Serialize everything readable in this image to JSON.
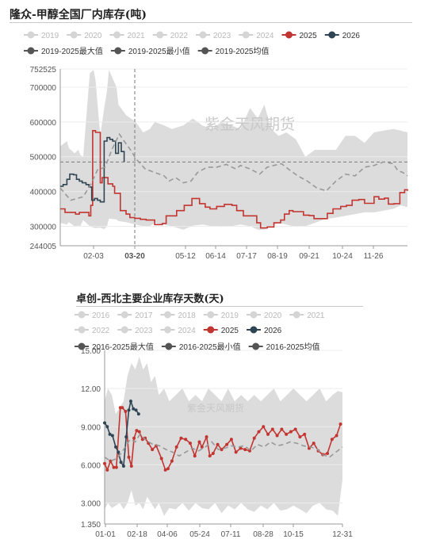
{
  "chart_data": [
    {
      "type": "line",
      "title": "隆众-甲醇全国厂内库存(吨)",
      "watermark": "紫金天风期货",
      "legend": [
        {
          "name": "2019",
          "color": "#cfcfcf",
          "active": false
        },
        {
          "name": "2020",
          "color": "#cfcfcf",
          "active": false
        },
        {
          "name": "2021",
          "color": "#cfcfcf",
          "active": false
        },
        {
          "name": "2022",
          "color": "#cfcfcf",
          "active": false
        },
        {
          "name": "2023",
          "color": "#cfcfcf",
          "active": false
        },
        {
          "name": "2024",
          "color": "#cfcfcf",
          "active": false
        },
        {
          "name": "2025",
          "color": "#c23531",
          "active": true
        },
        {
          "name": "2026",
          "color": "#2f4554",
          "active": true
        },
        {
          "name": "2019-2025最大值",
          "color": "#555555",
          "active": true
        },
        {
          "name": "2019-2025最小值",
          "color": "#555555",
          "active": true
        },
        {
          "name": "2019-2025均值",
          "color": "#555555",
          "active": true
        }
      ],
      "yticks": [
        "752525",
        "700000",
        "600000",
        "500000",
        "400000",
        "300000",
        "244005"
      ],
      "ylim": [
        244005,
        752525
      ],
      "y_highlight": "484900",
      "xticks": [
        "02-03",
        "03-20",
        "05-12",
        "06-14",
        "07-17",
        "08-19",
        "09-21",
        "10-24",
        "11-26"
      ],
      "x_highlight": "03-20",
      "range_band": {
        "days": [
          1,
          8,
          10,
          16,
          20,
          22,
          25,
          32,
          36,
          38,
          43,
          47,
          50,
          52,
          60,
          62,
          70,
          80,
          88,
          95,
          100,
          110,
          118,
          130,
          140,
          150,
          160,
          170,
          180,
          190,
          200,
          208,
          215,
          222,
          230,
          238,
          248,
          258,
          268,
          278,
          290,
          300,
          310,
          320,
          330,
          340,
          350,
          358,
          365
        ],
        "max": [
          530000,
          545000,
          525000,
          510000,
          520000,
          505000,
          500000,
          740000,
          750000,
          720000,
          560000,
          640000,
          690000,
          750000,
          700000,
          650000,
          620000,
          600000,
          570000,
          580000,
          600000,
          590000,
          580000,
          590000,
          610000,
          590000,
          580000,
          600000,
          590000,
          580000,
          640000,
          610000,
          650000,
          580000,
          560000,
          570000,
          550000,
          500000,
          520000,
          520000,
          520000,
          560000,
          560000,
          540000,
          570000,
          575000,
          580000,
          575000,
          570000
        ],
        "min": [
          310000,
          305000,
          312000,
          300000,
          302000,
          300000,
          318000,
          300000,
          296000,
          295000,
          296000,
          292000,
          300000,
          322000,
          320000,
          315000,
          312000,
          305000,
          300000,
          300000,
          310000,
          305000,
          300000,
          290000,
          302000,
          305000,
          300000,
          298000,
          300000,
          305000,
          300000,
          290000,
          290000,
          300000,
          310000,
          305000,
          298000,
          300000,
          310000,
          320000,
          325000,
          330000,
          335000,
          340000,
          340000,
          345000,
          350000,
          360000,
          355000
        ]
      },
      "series": [
        {
          "name": "2025",
          "color": "#c23531",
          "x": [
            1,
            6,
            10,
            17,
            21,
            27,
            31,
            33,
            35,
            38,
            43,
            45,
            51,
            56,
            58,
            64,
            70,
            74,
            79,
            85,
            91,
            96,
            100,
            108,
            112,
            123,
            131,
            139,
            147,
            153,
            158,
            165,
            173,
            181,
            186,
            193,
            197,
            207,
            211,
            218,
            225,
            232,
            236,
            241,
            245,
            256,
            262,
            267,
            275,
            281,
            287,
            295,
            301,
            307,
            314,
            320,
            330,
            335,
            341,
            345,
            351,
            357,
            362,
            365
          ],
          "y": [
            350000,
            340000,
            340000,
            335000,
            340000,
            340000,
            330000,
            360000,
            575000,
            570000,
            425000,
            440000,
            422000,
            415000,
            395000,
            345000,
            335000,
            325000,
            323000,
            320000,
            318000,
            318000,
            305000,
            308000,
            330000,
            345000,
            360000,
            380000,
            365000,
            355000,
            350000,
            357000,
            363000,
            360000,
            345000,
            330000,
            330000,
            310000,
            295000,
            298000,
            310000,
            318000,
            335000,
            345000,
            342000,
            332000,
            331000,
            322000,
            322000,
            337000,
            350000,
            357000,
            360000,
            375000,
            377000,
            366000,
            385000,
            378000,
            381000,
            364000,
            365000,
            397000,
            405000,
            402000
          ]
        },
        {
          "name": "2026",
          "color": "#2f4554",
          "x": [
            1,
            4,
            8,
            11,
            15,
            18,
            21,
            24,
            28,
            31,
            34,
            37,
            40,
            43,
            47,
            50,
            53,
            56,
            59,
            62,
            65,
            68
          ],
          "y": [
            415000,
            420000,
            435000,
            450000,
            448000,
            435000,
            430000,
            425000,
            420000,
            413000,
            375000,
            380000,
            375000,
            370000,
            545000,
            555000,
            550000,
            545000,
            510000,
            540000,
            515000,
            485000
          ]
        },
        {
          "name": "2019-2025均值",
          "color": "#999999",
          "dash": true,
          "x": [
            1,
            12,
            25,
            34,
            40,
            48,
            55,
            63,
            68,
            72,
            76,
            80,
            90,
            100,
            110,
            115,
            122,
            130,
            138,
            145,
            155,
            165,
            175,
            185,
            190,
            200,
            210,
            218,
            225,
            233,
            240,
            250,
            260,
            270,
            280,
            290,
            300,
            310,
            320,
            330,
            340,
            350,
            355,
            360,
            365
          ],
          "y": [
            410000,
            375000,
            385000,
            425000,
            462000,
            470000,
            520000,
            565000,
            545000,
            530000,
            515000,
            495000,
            465000,
            455000,
            445000,
            430000,
            440000,
            425000,
            430000,
            455000,
            470000,
            470000,
            478000,
            465000,
            475000,
            465000,
            450000,
            470000,
            475000,
            480000,
            465000,
            445000,
            430000,
            410000,
            402000,
            430000,
            450000,
            445000,
            470000,
            475000,
            485000,
            480000,
            460000,
            455000,
            445000
          ]
        }
      ]
    },
    {
      "type": "line",
      "title": "卓创-西北主要企业库存天数(天)",
      "watermark": "紫金天风期货",
      "legend": [
        {
          "name": "2016",
          "color": "#cfcfcf",
          "active": false
        },
        {
          "name": "2017",
          "color": "#cfcfcf",
          "active": false
        },
        {
          "name": "2018",
          "color": "#cfcfcf",
          "active": false
        },
        {
          "name": "2019",
          "color": "#cfcfcf",
          "active": false
        },
        {
          "name": "2020",
          "color": "#cfcfcf",
          "active": false
        },
        {
          "name": "2021",
          "color": "#cfcfcf",
          "active": false
        },
        {
          "name": "2022",
          "color": "#cfcfcf",
          "active": false
        },
        {
          "name": "2023",
          "color": "#cfcfcf",
          "active": false
        },
        {
          "name": "2024",
          "color": "#cfcfcf",
          "active": false
        },
        {
          "name": "2025",
          "color": "#c23531",
          "active": true
        },
        {
          "name": "2026",
          "color": "#2f4554",
          "active": true
        },
        {
          "name": "2016-2025最大值",
          "color": "#555555",
          "active": true
        },
        {
          "name": "2016-2025最小值",
          "color": "#555555",
          "active": true
        },
        {
          "name": "2016-2025均值",
          "color": "#555555",
          "active": true
        }
      ],
      "yticks": [
        "15.00",
        "12.00",
        "9.000",
        "6.000",
        "3.000",
        "1.350"
      ],
      "ylim": [
        1.35,
        15
      ],
      "xticks": [
        "01-01",
        "02-18",
        "04-06",
        "05-24",
        "07-11",
        "08-28",
        "10-15",
        "12-31"
      ],
      "range_band": {
        "days": [
          1,
          6,
          12,
          18,
          24,
          30,
          36,
          42,
          48,
          54,
          60,
          66,
          72,
          78,
          84,
          92,
          100,
          110,
          120,
          130,
          140,
          150,
          160,
          170,
          180,
          190,
          200,
          210,
          220,
          230,
          240,
          250,
          260,
          270,
          280,
          290,
          300,
          310,
          320,
          330,
          340,
          350,
          358,
          365
        ],
        "max": [
          11.0,
          12.0,
          11.5,
          10.0,
          10.5,
          11.0,
          13.0,
          14.0,
          13.5,
          14.5,
          13.5,
          14.0,
          12.5,
          13.0,
          11.5,
          12.0,
          11.0,
          11.5,
          12.0,
          11.0,
          11.5,
          11.0,
          12.0,
          11.5,
          11.0,
          12.0,
          11.0,
          11.5,
          11.0,
          11.5,
          11.0,
          11.5,
          12.0,
          11.0,
          11.5,
          12.0,
          11.5,
          11.0,
          11.5,
          12.0,
          11.0,
          11.5,
          11.8,
          11.7
        ],
        "min": [
          2.5,
          3.0,
          2.6,
          2.8,
          3.0,
          2.5,
          3.0,
          4.0,
          2.8,
          3.0,
          2.5,
          3.5,
          3.0,
          2.5,
          3.0,
          2.0,
          2.6,
          2.5,
          3.0,
          2.4,
          3.0,
          2.6,
          2.5,
          3.0,
          2.2,
          2.8,
          2.5,
          3.0,
          2.5,
          2.3,
          2.8,
          2.5,
          3.0,
          2.4,
          2.5,
          2.8,
          2.5,
          2.2,
          2.8,
          3.0,
          2.5,
          2.4,
          2.0,
          4.8
        ]
      },
      "series": [
        {
          "name": "2025",
          "color": "#c23531",
          "x": [
            1,
            5,
            10,
            15,
            19,
            25,
            28,
            33,
            38,
            42,
            46,
            50,
            54,
            59,
            63,
            68,
            74,
            80,
            88,
            94,
            98,
            104,
            111,
            118,
            125,
            132,
            139,
            146,
            150,
            157,
            162,
            167,
            174,
            180,
            188,
            195,
            202,
            209,
            216,
            223,
            230,
            237,
            244,
            251,
            258,
            265,
            272,
            279,
            286,
            293,
            300,
            307,
            314,
            321,
            328,
            335,
            342,
            349,
            356,
            362
          ],
          "y": [
            6.1,
            5.6,
            6.3,
            5.8,
            5.8,
            10.5,
            10.5,
            10.2,
            6.6,
            5.9,
            8.1,
            8.7,
            8.6,
            8.0,
            8.1,
            7.7,
            7.2,
            7.5,
            6.5,
            5.6,
            5.7,
            6.3,
            7.4,
            8.1,
            8.0,
            7.7,
            6.7,
            7.8,
            7.4,
            8.2,
            6.7,
            6.9,
            7.6,
            7.2,
            7.6,
            8.0,
            7.0,
            7.3,
            7.2,
            7.1,
            8.1,
            8.6,
            9.0,
            8.4,
            8.8,
            8.3,
            8.8,
            8.4,
            8.6,
            8.8,
            8.2,
            8.4,
            7.3,
            7.7,
            7.1,
            6.8,
            6.9,
            8.0,
            8.3,
            9.2
          ]
        },
        {
          "name": "2026",
          "color": "#2f4554",
          "x": [
            1,
            5,
            9,
            13,
            18,
            22,
            26,
            30,
            34,
            38,
            41,
            45,
            49,
            53
          ],
          "y": [
            9.3,
            9.0,
            8.4,
            8.3,
            7.4,
            7.0,
            6.2,
            5.9,
            8.2,
            10.3,
            11.0,
            10.4,
            10.3,
            10.0
          ]
        },
        {
          "name": "2016-2025均值",
          "color": "#999999",
          "dash": true,
          "x": [
            1,
            10,
            20,
            30,
            40,
            48,
            55,
            65,
            75,
            85,
            95,
            105,
            115,
            125,
            135,
            145,
            155,
            165,
            175,
            185,
            195,
            205,
            215,
            225,
            235,
            245,
            255,
            265,
            275,
            285,
            295,
            305,
            315,
            325,
            335,
            345,
            355,
            365
          ],
          "y": [
            6.6,
            6.3,
            6.5,
            7.2,
            8.0,
            7.8,
            8.4,
            7.9,
            7.6,
            7.5,
            7.2,
            7.0,
            6.7,
            7.0,
            7.3,
            7.1,
            7.4,
            7.8,
            7.2,
            7.3,
            7.5,
            7.4,
            7.5,
            7.1,
            7.6,
            7.4,
            7.8,
            7.5,
            7.6,
            7.8,
            7.7,
            7.5,
            7.4,
            7.3,
            6.8,
            6.6,
            7.0,
            7.4
          ]
        }
      ]
    }
  ]
}
